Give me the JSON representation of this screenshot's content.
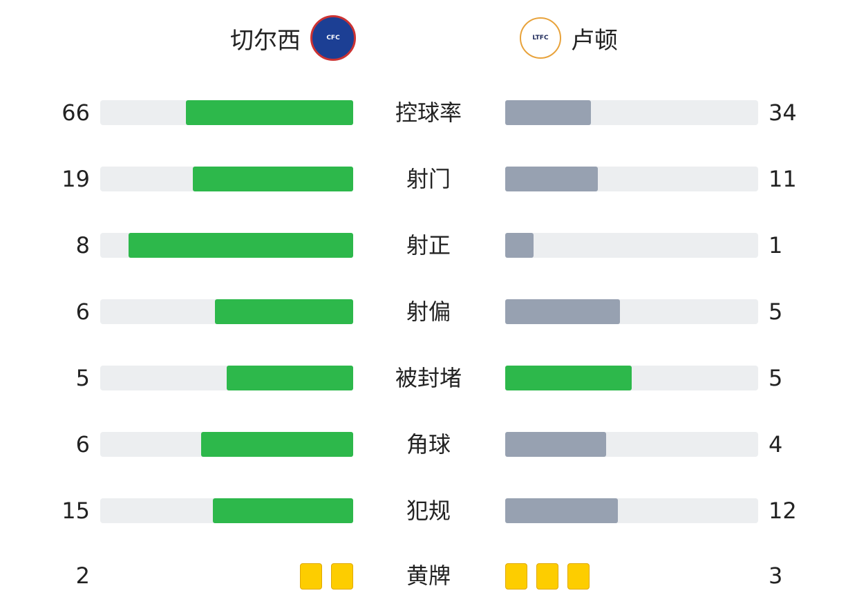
{
  "home": {
    "name": "切尔西",
    "logo_text": "CHELSEA FOOTBALL CLUB"
  },
  "away": {
    "name": "卢顿",
    "logo_text": "LUTON TOWN FOOTBALL CLUB"
  },
  "colors": {
    "leader": "#2db84b",
    "trailer": "#97a1b1",
    "track": "#eceef0",
    "card": "#fdcd00"
  },
  "stats": [
    {
      "label": "控球率",
      "home": 66,
      "away": 34
    },
    {
      "label": "射门",
      "home": 19,
      "away": 11
    },
    {
      "label": "射正",
      "home": 8,
      "away": 1
    },
    {
      "label": "射偏",
      "home": 6,
      "away": 5
    },
    {
      "label": "被封堵",
      "home": 5,
      "away": 5
    },
    {
      "label": "角球",
      "home": 6,
      "away": 4
    },
    {
      "label": "犯规",
      "home": 15,
      "away": 12
    }
  ],
  "yellow_cards": {
    "label": "黄牌",
    "home": 2,
    "away": 3
  }
}
